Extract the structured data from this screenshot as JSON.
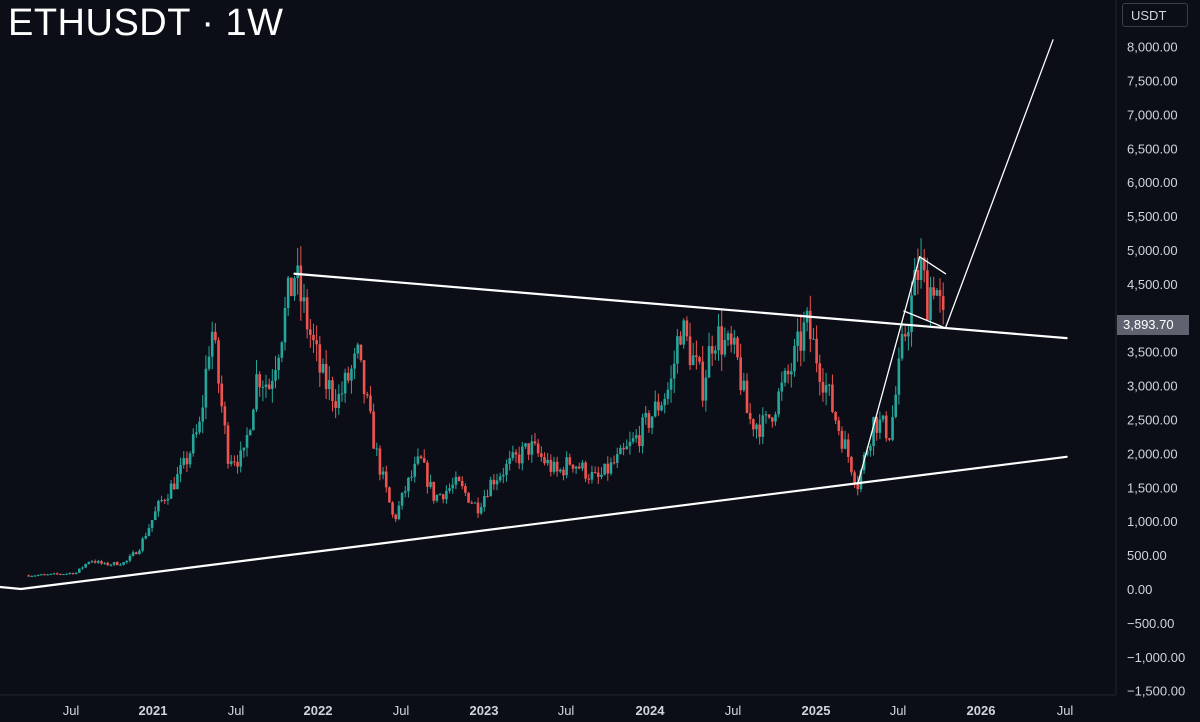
{
  "header": {
    "title": "ETHUSDT · 1W"
  },
  "price_scale": {
    "unit": "USDT",
    "last_price_label": "3,893.70"
  },
  "colors": {
    "background": "#0c0e17",
    "up": "#26a69a",
    "down": "#ef5350",
    "line": "#ffffff",
    "axis_text": "#d1d4dc"
  },
  "chart_data": {
    "type": "candlestick",
    "title": "ETHUSDT · 1W",
    "yaxis": {
      "ylim": [
        -1500,
        8000
      ],
      "tick_labels": [
        "8,000.00",
        "7,500.00",
        "7,000.00",
        "6,500.00",
        "6,000.00",
        "5,500.00",
        "5,000.00",
        "4,500.00",
        "4,000.00",
        "3,500.00",
        "3,000.00",
        "2,500.00",
        "2,000.00",
        "1,500.00",
        "1,000.00",
        "500.00",
        "0.00",
        "−500.00",
        "−1,000.00",
        "−1,500.00"
      ],
      "tick_values": [
        8000,
        7500,
        7000,
        6500,
        6000,
        5500,
        5000,
        4500,
        4000,
        3500,
        3000,
        2500,
        2000,
        1500,
        1000,
        500,
        0,
        -500,
        -1000,
        -1500
      ]
    },
    "xaxis": {
      "tick_labels": [
        "Jul",
        "2021",
        "Jul",
        "2022",
        "Jul",
        "2023",
        "Jul",
        "2024",
        "Jul",
        "2025",
        "Jul",
        "2026",
        "Jul"
      ],
      "bold": [
        false,
        true,
        false,
        true,
        false,
        true,
        false,
        true,
        false,
        true,
        false,
        true,
        false
      ]
    },
    "price_path_close": [
      [
        "2020-04-01",
        200
      ],
      [
        "2020-05-15",
        210
      ],
      [
        "2020-07-15",
        240
      ],
      [
        "2020-08-15",
        430
      ],
      [
        "2020-09-15",
        360
      ],
      [
        "2020-11-01",
        390
      ],
      [
        "2020-12-01",
        600
      ],
      [
        "2021-01-15",
        1250
      ],
      [
        "2021-02-20",
        1600
      ],
      [
        "2021-03-10",
        1800
      ],
      [
        "2021-04-15",
        2400
      ],
      [
        "2021-05-10",
        3900
      ],
      [
        "2021-06-15",
        2000
      ],
      [
        "2021-07-20",
        1900
      ],
      [
        "2021-08-20",
        3200
      ],
      [
        "2021-09-15",
        3000
      ],
      [
        "2021-10-25",
        4200
      ],
      [
        "2021-11-10",
        4650
      ],
      [
        "2021-12-05",
        4000
      ],
      [
        "2022-01-10",
        3100
      ],
      [
        "2022-02-15",
        2800
      ],
      [
        "2022-03-30",
        3400
      ],
      [
        "2022-05-10",
        2000
      ],
      [
        "2022-06-18",
        1000
      ],
      [
        "2022-07-15",
        1500
      ],
      [
        "2022-08-15",
        1900
      ],
      [
        "2022-09-15",
        1350
      ],
      [
        "2022-11-05",
        1550
      ],
      [
        "2022-12-20",
        1200
      ],
      [
        "2023-01-20",
        1600
      ],
      [
        "2023-04-15",
        2100
      ],
      [
        "2023-06-15",
        1700
      ],
      [
        "2023-07-15",
        1900
      ],
      [
        "2023-09-10",
        1600
      ],
      [
        "2023-11-10",
        2000
      ],
      [
        "2023-12-15",
        2300
      ],
      [
        "2024-02-20",
        3000
      ],
      [
        "2024-03-12",
        3900
      ],
      [
        "2024-05-01",
        3000
      ],
      [
        "2024-05-25",
        3800
      ],
      [
        "2024-07-15",
        3400
      ],
      [
        "2024-08-10",
        2500
      ],
      [
        "2024-09-15",
        2400
      ],
      [
        "2024-11-10",
        3200
      ],
      [
        "2024-12-16",
        3900
      ],
      [
        "2025-01-15",
        3300
      ],
      [
        "2025-02-15",
        2600
      ],
      [
        "2025-04-09",
        1550
      ],
      [
        "2025-05-15",
        2500
      ],
      [
        "2025-06-20",
        2300
      ],
      [
        "2025-07-20",
        3700
      ],
      [
        "2025-08-24",
        4800
      ],
      [
        "2025-09-10",
        4300
      ],
      [
        "2025-09-25",
        4600
      ],
      [
        "2025-10-15",
        3894
      ]
    ],
    "trendlines": [
      {
        "name": "",
        "points": [
          [
            "2020-03-15",
            0
          ],
          [
            "2026-07-15",
            1950
          ]
        ]
      },
      {
        "name": "",
        "points": [
          [
            "2021-11-10",
            4650
          ],
          [
            "2026-07-15",
            3700
          ]
        ]
      },
      {
        "name": "",
        "points": [
          [
            "2025-04-09",
            1550
          ],
          [
            "2025-08-24",
            4900
          ]
        ]
      },
      {
        "name": "",
        "points": [
          [
            "2025-08-24",
            4900
          ],
          [
            "2025-10-20",
            4650
          ]
        ]
      },
      {
        "name": "",
        "points": [
          [
            "2025-07-20",
            4100
          ],
          [
            "2025-10-20",
            3850
          ]
        ]
      },
      {
        "name": "",
        "points": [
          [
            "2025-10-20",
            3850
          ],
          [
            "2026-06-15",
            8100
          ]
        ]
      }
    ],
    "last_price": 3893.7,
    "grid": false,
    "legend": "none"
  }
}
